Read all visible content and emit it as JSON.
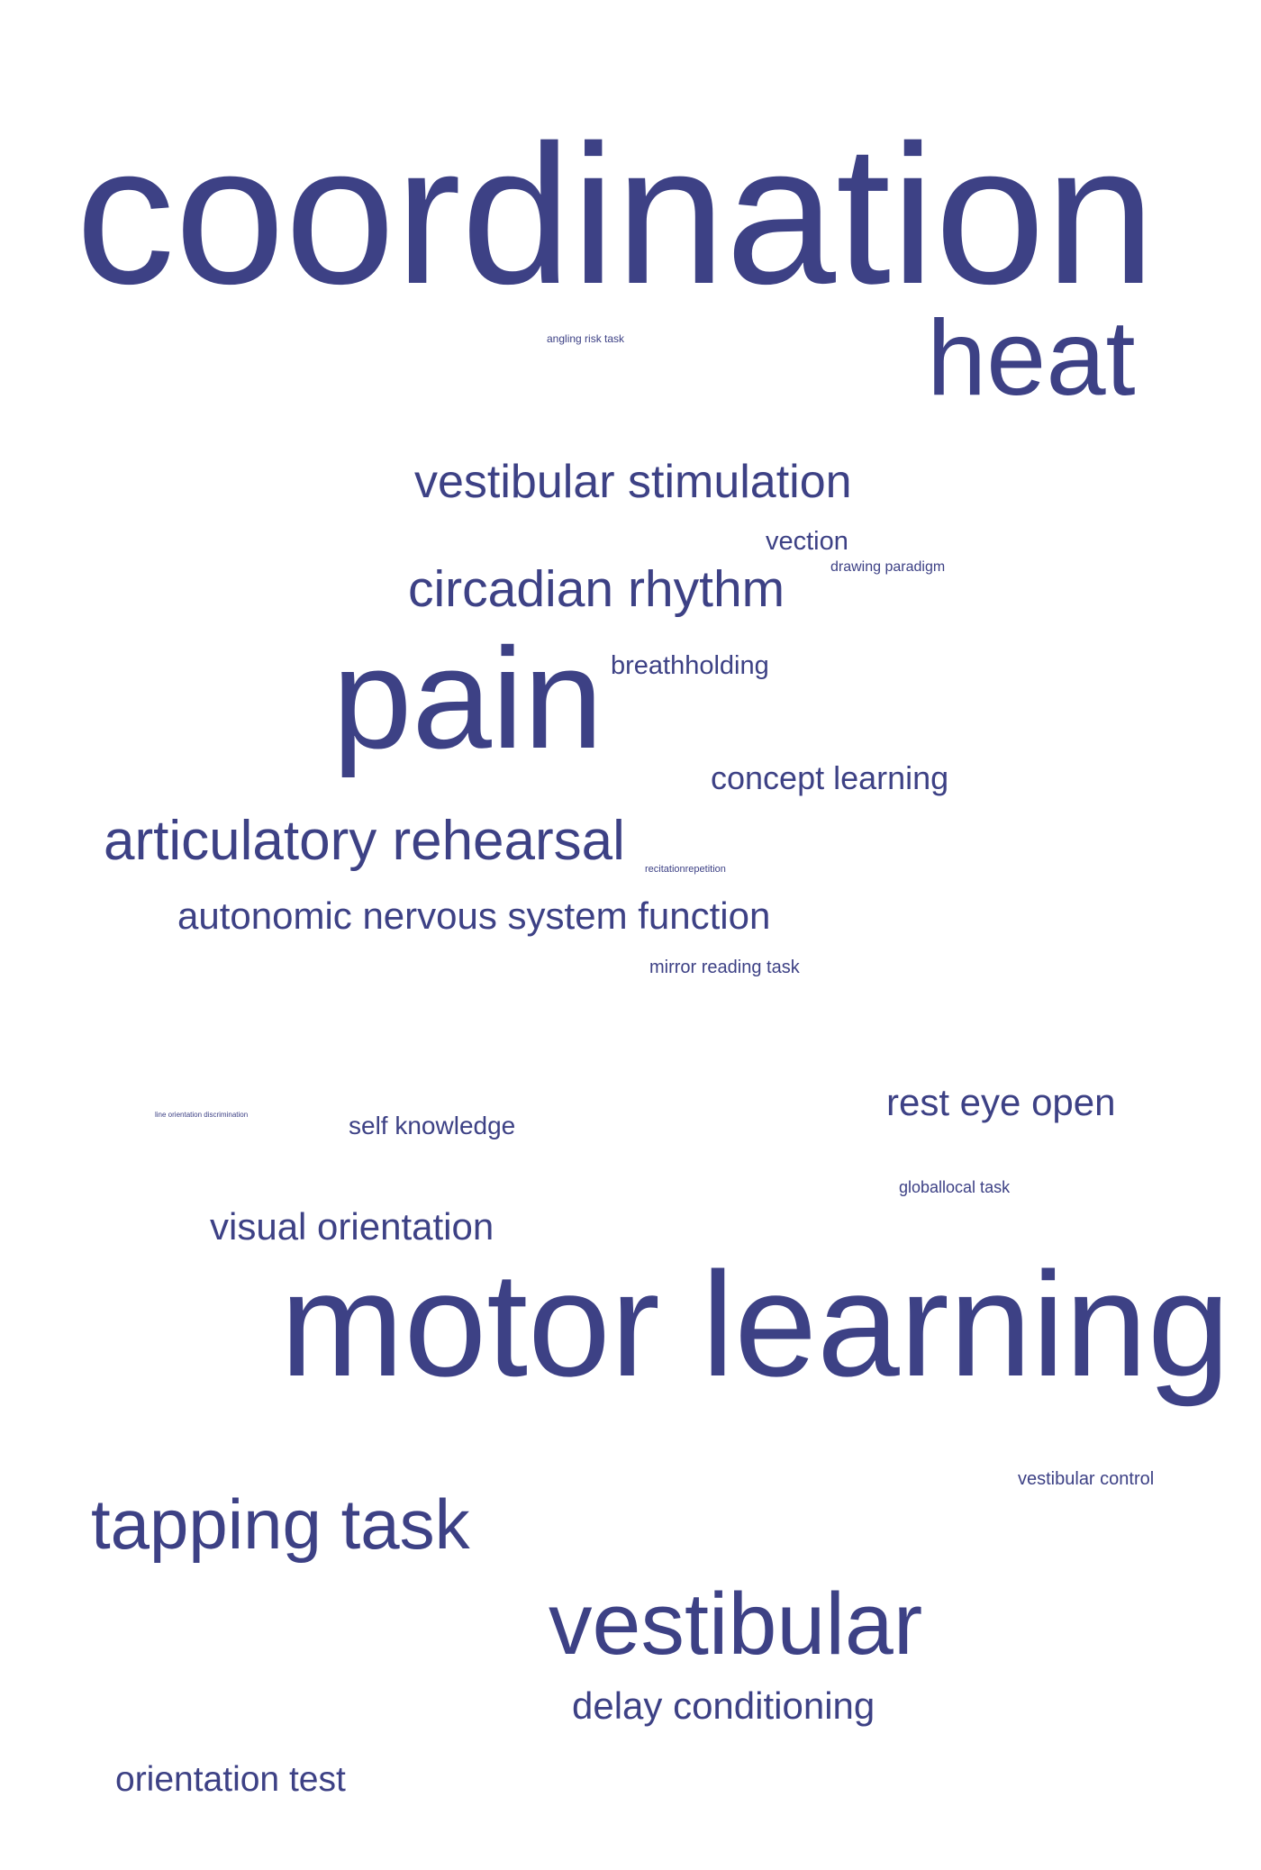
{
  "color": "#3d4185",
  "words": {
    "coordination": "coordination",
    "heat": "heat",
    "angling_risk_task": "angling risk task",
    "vestibular_stimulation": "vestibular stimulation",
    "vection": "vection",
    "drawing_paradigm": "drawing paradigm",
    "circadian_rhythm": "circadian rhythm",
    "pain": "pain",
    "breathholding": "breathholding",
    "concept_learning": "concept learning",
    "articulatory_rehearsal": "articulatory rehearsal",
    "recitation_repetition": "recitationrepetition",
    "autonomic_nervous_system_function": "autonomic nervous system function",
    "mirror_reading_task": "mirror reading task",
    "line_discrimination": "line orientation discrimination",
    "self_knowledge": "self knowledge",
    "rest_eye_open": "rest eye open",
    "global_local_task": "globallocal task",
    "visual_orientation": "visual orientation",
    "motor_learning": "motor learning",
    "vestibular_control": "vestibular control",
    "tapping_task": "tapping task",
    "vestibular": "vestibular",
    "delay_conditioning": "delay conditioning",
    "orientation_test": "orientation test"
  }
}
